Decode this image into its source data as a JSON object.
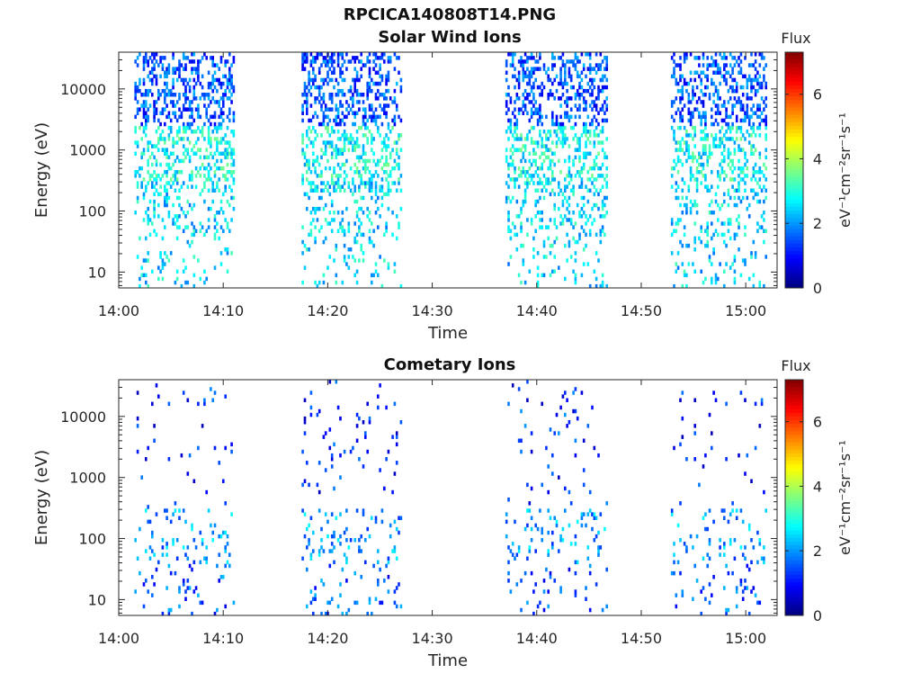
{
  "page": {
    "title": "RPCICA140808T14.PNG"
  },
  "colors": {
    "axis": "#262626",
    "background": "#ffffff",
    "colormap": [
      "#00007f",
      "#0000ff",
      "#007fff",
      "#00ffff",
      "#7fff7f",
      "#ffff00",
      "#ff7f00",
      "#ff0000",
      "#7f0000"
    ]
  },
  "chart_data": [
    {
      "type": "heatmap",
      "title": "Solar Wind Ions",
      "xlabel": "Time",
      "ylabel": "Energy (eV)",
      "yscale": "log",
      "ylim": [
        5.5,
        40000
      ],
      "xlim": [
        "14:00",
        "15:03"
      ],
      "xticks": [
        "14:00",
        "14:10",
        "14:20",
        "14:30",
        "14:40",
        "14:50",
        "15:00"
      ],
      "yticks": [
        "10",
        "100",
        "1000",
        "10000"
      ],
      "colorbar": {
        "label": "Flux",
        "units": "eV⁻¹cm⁻²sr⁻¹s⁻¹",
        "range": [
          0,
          7.3
        ],
        "ticks": [
          "0",
          "2",
          "4",
          "6"
        ]
      },
      "grid": false,
      "data_intervals": [
        [
          "14:01:30",
          "14:11:00"
        ],
        [
          "14:17:30",
          "14:27:00"
        ],
        [
          "14:37:00",
          "14:46:40"
        ],
        [
          "14:52:50",
          "15:02:00"
        ]
      ],
      "typical_flux": {
        "high_energy": 1.5,
        "peak_at_600eV": 3.5,
        "low_energy": 2.5
      }
    },
    {
      "type": "heatmap",
      "title": "Cometary Ions",
      "xlabel": "Time",
      "ylabel": "Energy (eV)",
      "yscale": "log",
      "ylim": [
        5.5,
        40000
      ],
      "xlim": [
        "14:00",
        "15:03"
      ],
      "xticks": [
        "14:00",
        "14:10",
        "14:20",
        "14:30",
        "14:40",
        "14:50",
        "15:00"
      ],
      "yticks": [
        "10",
        "100",
        "1000",
        "10000"
      ],
      "colorbar": {
        "label": "Flux",
        "units": "eV⁻¹cm⁻²sr⁻¹s⁻¹",
        "range": [
          0,
          7.3
        ],
        "ticks": [
          "0",
          "2",
          "4",
          "6"
        ]
      },
      "grid": false,
      "data_intervals": [
        [
          "14:01:30",
          "14:11:00"
        ],
        [
          "14:17:30",
          "14:27:00"
        ],
        [
          "14:37:00",
          "14:46:40"
        ],
        [
          "14:52:50",
          "15:02:00"
        ]
      ],
      "typical_flux": {
        "high_energy": 1.2,
        "near_100eV": 2.0,
        "low_energy": 1.5
      }
    }
  ]
}
